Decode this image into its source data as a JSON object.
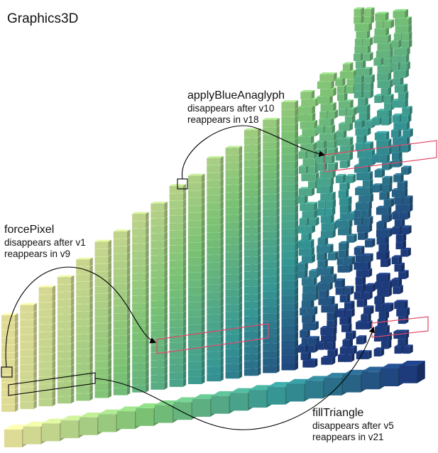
{
  "title": "Graphics3D",
  "palette": {
    "low": "#f1eea3",
    "mid": "#86d27e",
    "high": "#1f3f86",
    "highlight_red": "#e14a68",
    "highlight_black": "#000000"
  },
  "annotations": [
    {
      "id": "applyBlueAnaglyph",
      "name": "applyBlueAnaglyph",
      "line1": "disappears after v10",
      "line2": "reappears in v18"
    },
    {
      "id": "forcePixel",
      "name": "forcePixel",
      "line1": "disappears after v1",
      "line2": "reappears in v9"
    },
    {
      "id": "fillTriangle",
      "name": "fillTriangle",
      "line1": "disappears after v5",
      "line2": "reappears in v21"
    }
  ]
}
